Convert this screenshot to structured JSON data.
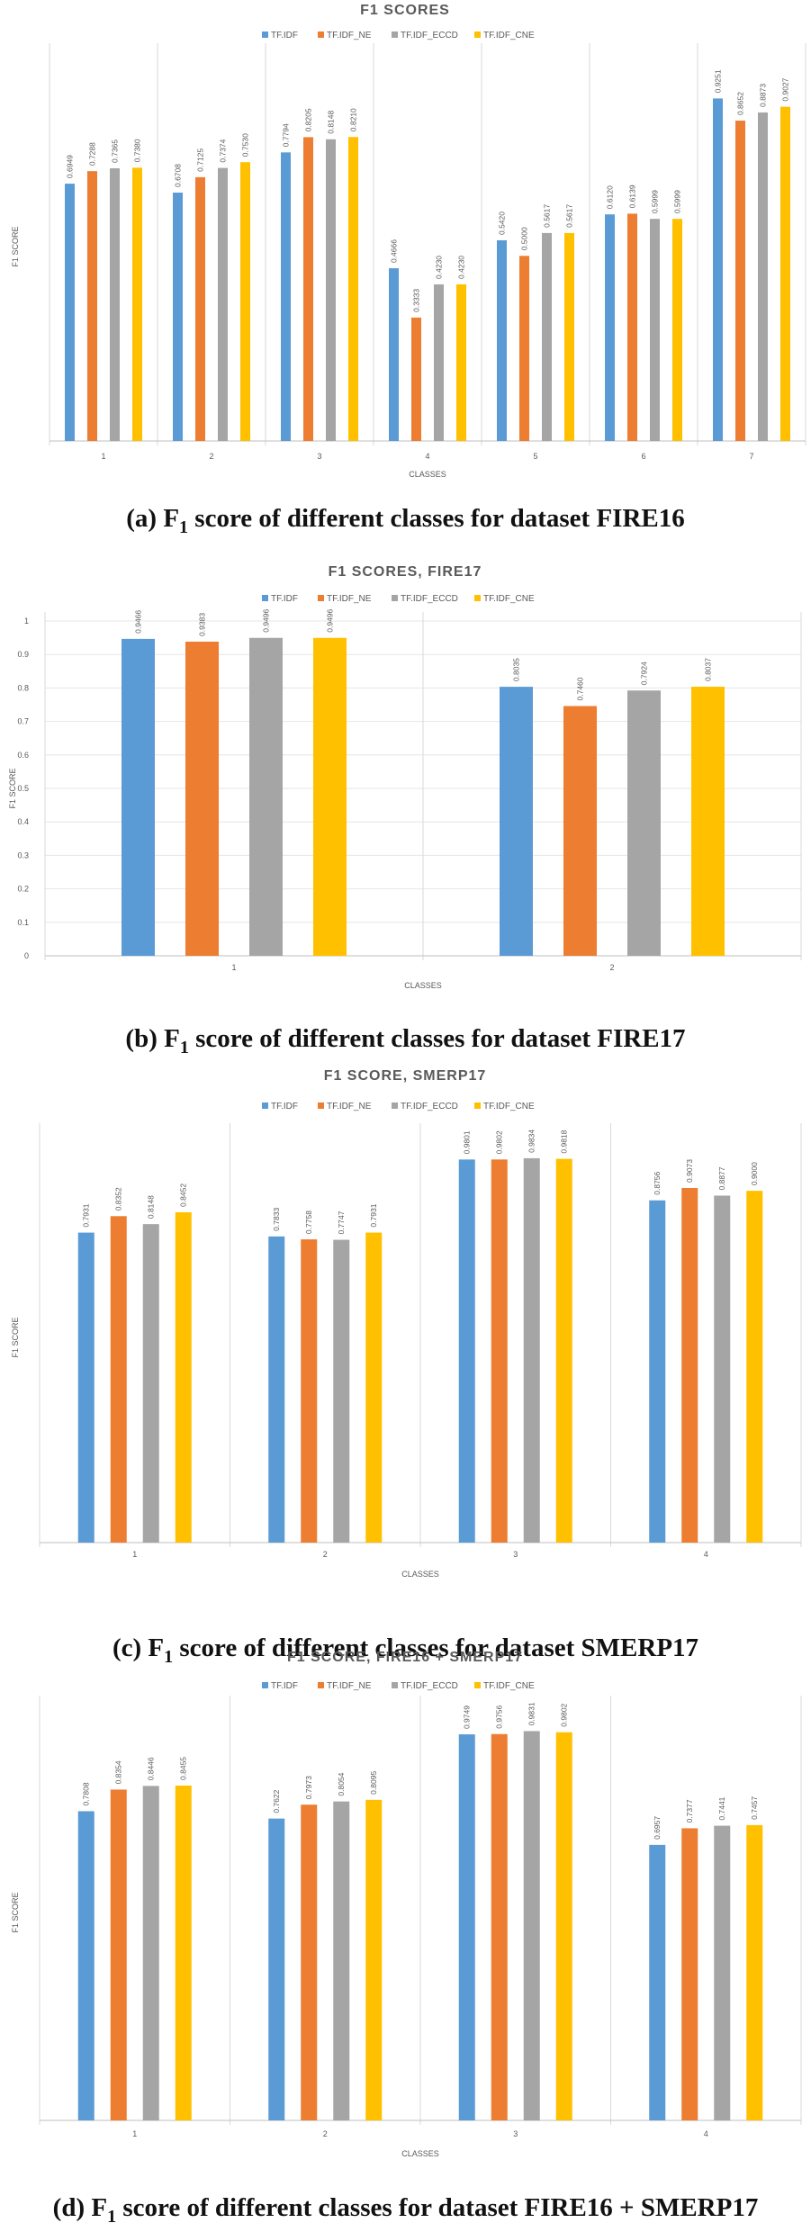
{
  "colors": [
    "#5b9bd5",
    "#ed7d31",
    "#a5a5a5",
    "#ffc000"
  ],
  "legend": [
    "TF.IDF",
    "TF.IDF_NE",
    "TF.IDF_ECCD",
    "TF.IDF_CNE"
  ],
  "panels": [
    {
      "caption": {
        "prefix": "(a) F",
        "sub": "1",
        "suffix": " score of different classes for dataset FIRE16"
      },
      "chart_data": {
        "type": "bar",
        "title": "F1 SCORES",
        "xlabel": "CLASSES",
        "ylabel": "F1 SCORE",
        "ylim": [
          0,
          1.05
        ],
        "y_ticks_shown": false,
        "categories": [
          "1",
          "2",
          "3",
          "4",
          "5",
          "6",
          "7"
        ],
        "series": [
          {
            "name": "TF.IDF",
            "values": [
              0.6949,
              0.6708,
              0.7794,
              0.4666,
              0.542,
              0.612,
              0.9251
            ],
            "labels": [
              "0.6949",
              "0.6708",
              "0.7794",
              "0.4666",
              "0.5420",
              "0.6120",
              "0.9251"
            ]
          },
          {
            "name": "TF.IDF_NE",
            "values": [
              0.7288,
              0.7125,
              0.8205,
              0.3333,
              0.5,
              0.6139,
              0.8652
            ],
            "labels": [
              "0.7288",
              "0.7125",
              "0.8205",
              "0.3333",
              "0.5000",
              "0.6139",
              "0.8652"
            ]
          },
          {
            "name": "TF.IDF_ECCD",
            "values": [
              0.7365,
              0.7374,
              0.8148,
              0.423,
              0.5617,
              0.5999,
              0.8873
            ],
            "labels": [
              "0.7365",
              "0.7374",
              "0.8148",
              "0.4230",
              "0.5617",
              "0.5999",
              "0.8873"
            ]
          },
          {
            "name": "TF.IDF_CNE",
            "values": [
              0.738,
              0.753,
              0.821,
              0.423,
              0.5617,
              0.5999,
              0.9027
            ],
            "labels": [
              "0.7380",
              "0.7530",
              "0.8210",
              "0.4230",
              "0.5617",
              "0.5999",
              "0.9027"
            ]
          }
        ]
      }
    },
    {
      "caption": {
        "prefix": "(b) F",
        "sub": "1",
        "suffix": " score of different classes for dataset FIRE17"
      },
      "chart_data": {
        "type": "bar",
        "title": "F1 SCORES, FIRE17",
        "xlabel": "CLASSES",
        "ylabel": "F1 SCORE",
        "ylim": [
          0,
          1
        ],
        "y_ticks_shown": true,
        "y_ticks": [
          "0",
          "0.1",
          "0.2",
          "0.3",
          "0.4",
          "0.5",
          "0.6",
          "0.7",
          "0.8",
          "0.9",
          "1"
        ],
        "categories": [
          "1",
          "2"
        ],
        "series": [
          {
            "name": "TF.IDF",
            "values": [
              0.9466,
              0.8035
            ],
            "labels": [
              "0.9466",
              "0.8035"
            ]
          },
          {
            "name": "TF.IDF_NE",
            "values": [
              0.9383,
              0.746
            ],
            "labels": [
              "0.9383",
              "0.7460"
            ]
          },
          {
            "name": "TF.IDF_ECCD",
            "values": [
              0.9496,
              0.7924
            ],
            "labels": [
              "0.9496",
              "0.7924"
            ]
          },
          {
            "name": "TF.IDF_CNE",
            "values": [
              0.9496,
              0.8037
            ],
            "labels": [
              "0.9496",
              "0.8037"
            ]
          }
        ]
      }
    },
    {
      "caption": {
        "prefix": "(c) F",
        "sub": "1",
        "suffix": " score of different classes for dataset SMERP17"
      },
      "chart_data": {
        "type": "bar",
        "title": "F1 SCORE, SMERP17",
        "xlabel": "CLASSES",
        "ylabel": "F1 SCORE",
        "ylim": [
          0,
          1.05
        ],
        "y_ticks_shown": false,
        "categories": [
          "1",
          "2",
          "3",
          "4"
        ],
        "series": [
          {
            "name": "TF.IDF",
            "values": [
              0.7931,
              0.7833,
              0.9801,
              0.8756
            ],
            "labels": [
              "0.7931",
              "0.7833",
              "0.9801",
              "0.8756"
            ]
          },
          {
            "name": "TF.IDF_NE",
            "values": [
              0.8352,
              0.7758,
              0.9802,
              0.9073
            ],
            "labels": [
              "0.8352",
              "0.7758",
              "0.9802",
              "0.9073"
            ]
          },
          {
            "name": "TF.IDF_ECCD",
            "values": [
              0.8148,
              0.7747,
              0.9834,
              0.8877
            ],
            "labels": [
              "0.8148",
              "0.7747",
              "0.9834",
              "0.8877"
            ]
          },
          {
            "name": "TF.IDF_CNE",
            "values": [
              0.8452,
              0.7931,
              0.9818,
              0.9
            ],
            "labels": [
              "0.8452",
              "0.7931",
              "0.9818",
              "0.9000"
            ]
          }
        ]
      }
    },
    {
      "caption": {
        "prefix": "(d) F",
        "sub": "1",
        "suffix": " score of different classes for dataset FIRE16 + SMERP17"
      },
      "chart_data": {
        "type": "bar",
        "title": "F1 SCORE, FIRE16 + SMERP17",
        "xlabel": "CLASSES",
        "ylabel": "F1 SCORE",
        "ylim": [
          0,
          1.05
        ],
        "y_ticks_shown": false,
        "categories": [
          "1",
          "2",
          "3",
          "4"
        ],
        "series": [
          {
            "name": "TF.IDF",
            "values": [
              0.7808,
              0.7622,
              0.9749,
              0.6957
            ],
            "labels": [
              "0.7808",
              "0.7622",
              "0.9749",
              "0.6957"
            ]
          },
          {
            "name": "TF.IDF_NE",
            "values": [
              0.8354,
              0.7973,
              0.9756,
              0.7377
            ],
            "labels": [
              "0.8354",
              "0.7973",
              "0.9756",
              "0.7377"
            ]
          },
          {
            "name": "TF.IDF_ECCD",
            "values": [
              0.8446,
              0.8054,
              0.9831,
              0.7441
            ],
            "labels": [
              "0.8446",
              "0.8054",
              "0.9831",
              "0.7441"
            ]
          },
          {
            "name": "TF.IDF_CNE",
            "values": [
              0.8455,
              0.8095,
              0.9802,
              0.7457
            ],
            "labels": [
              "0.8455",
              "0.8095",
              "0.9802",
              "0.7457"
            ]
          }
        ]
      }
    }
  ]
}
